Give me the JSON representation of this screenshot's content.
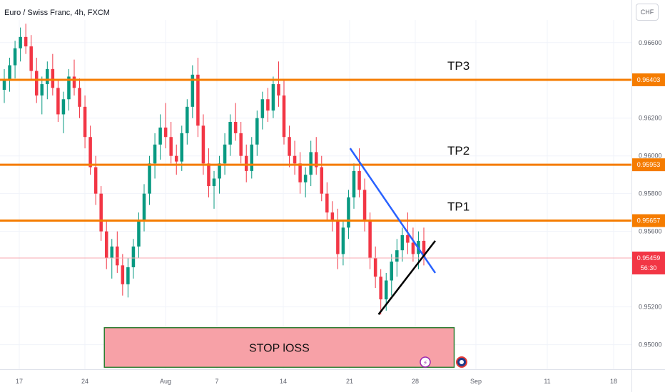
{
  "chart_data": {
    "type": "candlestick",
    "title": "Euro / Swiss Franc, 4h, FXCM",
    "currency": "CHF",
    "y_axis_ticks": [
      "0.96600",
      "0.96200",
      "0.96000",
      "0.95800",
      "0.95600",
      "0.95200",
      "0.95000"
    ],
    "x_axis_ticks": [
      "17",
      "24",
      "Aug",
      "7",
      "14",
      "21",
      "28",
      "Sep",
      "11",
      "18"
    ],
    "ylim": [
      0.9487,
      0.9672
    ],
    "horizontal_levels": [
      {
        "label": "TP3",
        "value": 0.96403,
        "tag": "0.96403",
        "color": "#f57c00"
      },
      {
        "label": "TP2",
        "value": 0.95953,
        "tag": "0.95953",
        "color": "#f57c00"
      },
      {
        "label": "TP1",
        "value": 0.95657,
        "tag": "0.95657",
        "color": "#f57c00"
      }
    ],
    "current_price": {
      "value": 0.95459,
      "tag": "0.95459",
      "countdown": "56:30",
      "color": "#f23645"
    },
    "trendlines": [
      {
        "name": "descending",
        "color": "#2962ff",
        "points": [
          [
            "2023-08-21",
            0.9604
          ],
          [
            "2023-08-30",
            0.9538
          ]
        ]
      },
      {
        "name": "ascending",
        "color": "#000000",
        "points": [
          [
            "2023-08-24",
            0.9516
          ],
          [
            "2023-08-30",
            0.9555
          ]
        ]
      }
    ],
    "stop_zone": {
      "label": "STOP lOSS",
      "from": 0.9488,
      "to": 0.9509,
      "start": "2023-07-26",
      "end": "2023-09-01",
      "fill": "#f7a1a7",
      "border": "#2e7d32"
    },
    "ohlc_approx": [
      [
        0.9635,
        0.9646,
        0.9628,
        0.964
      ],
      [
        0.964,
        0.9652,
        0.9634,
        0.9648
      ],
      [
        0.9648,
        0.9661,
        0.9641,
        0.9657
      ],
      [
        0.9657,
        0.9668,
        0.965,
        0.9663
      ],
      [
        0.9663,
        0.967,
        0.9654,
        0.9658
      ],
      [
        0.9658,
        0.9664,
        0.964,
        0.9645
      ],
      [
        0.9645,
        0.9652,
        0.9628,
        0.9632
      ],
      [
        0.9632,
        0.9642,
        0.9622,
        0.9638
      ],
      [
        0.9638,
        0.965,
        0.963,
        0.9646
      ],
      [
        0.9646,
        0.9654,
        0.9632,
        0.9636
      ],
      [
        0.9636,
        0.964,
        0.9618,
        0.9622
      ],
      [
        0.9622,
        0.9634,
        0.9612,
        0.963
      ],
      [
        0.963,
        0.9646,
        0.9624,
        0.9642
      ],
      [
        0.9642,
        0.9651,
        0.9632,
        0.9636
      ],
      [
        0.9636,
        0.9641,
        0.962,
        0.9626
      ],
      [
        0.9626,
        0.9632,
        0.9604,
        0.961
      ],
      [
        0.961,
        0.9616,
        0.959,
        0.9594
      ],
      [
        0.9594,
        0.96,
        0.9574,
        0.958
      ],
      [
        0.958,
        0.9584,
        0.9555,
        0.956
      ],
      [
        0.956,
        0.9566,
        0.954,
        0.9546
      ],
      [
        0.9546,
        0.9556,
        0.9535,
        0.9552
      ],
      [
        0.9552,
        0.956,
        0.9538,
        0.9542
      ],
      [
        0.9542,
        0.9548,
        0.9526,
        0.9532
      ],
      [
        0.9532,
        0.9546,
        0.9525,
        0.9541
      ],
      [
        0.9541,
        0.9556,
        0.9535,
        0.9552
      ],
      [
        0.9552,
        0.957,
        0.9546,
        0.9566
      ],
      [
        0.9566,
        0.9585,
        0.956,
        0.958
      ],
      [
        0.958,
        0.96,
        0.9574,
        0.9596
      ],
      [
        0.9596,
        0.9612,
        0.9588,
        0.9606
      ],
      [
        0.9606,
        0.9622,
        0.9598,
        0.9615
      ],
      [
        0.9615,
        0.9628,
        0.9604,
        0.961
      ],
      [
        0.961,
        0.9618,
        0.9596,
        0.96
      ],
      [
        0.96,
        0.9606,
        0.959,
        0.9597
      ],
      [
        0.9597,
        0.9616,
        0.9592,
        0.9612
      ],
      [
        0.9612,
        0.963,
        0.9606,
        0.9626
      ],
      [
        0.9626,
        0.9648,
        0.962,
        0.9643
      ],
      [
        0.9643,
        0.9652,
        0.961,
        0.9616
      ],
      [
        0.9616,
        0.9622,
        0.959,
        0.9596
      ],
      [
        0.9596,
        0.9604,
        0.9578,
        0.9584
      ],
      [
        0.9584,
        0.9592,
        0.9572,
        0.9588
      ],
      [
        0.9588,
        0.96,
        0.958,
        0.9596
      ],
      [
        0.9596,
        0.9612,
        0.959,
        0.9606
      ],
      [
        0.9606,
        0.9622,
        0.96,
        0.9618
      ],
      [
        0.9618,
        0.9628,
        0.9608,
        0.9612
      ],
      [
        0.9612,
        0.9618,
        0.9596,
        0.96
      ],
      [
        0.96,
        0.9606,
        0.9586,
        0.9592
      ],
      [
        0.9592,
        0.961,
        0.9588,
        0.9606
      ],
      [
        0.9606,
        0.9624,
        0.96,
        0.962
      ],
      [
        0.962,
        0.9634,
        0.9614,
        0.963
      ],
      [
        0.963,
        0.9636,
        0.9618,
        0.9624
      ],
      [
        0.9624,
        0.9642,
        0.962,
        0.9638
      ],
      [
        0.9638,
        0.965,
        0.9626,
        0.9632
      ],
      [
        0.9632,
        0.964,
        0.9606,
        0.961
      ],
      [
        0.961,
        0.9616,
        0.9594,
        0.96
      ],
      [
        0.96,
        0.9608,
        0.959,
        0.9596
      ],
      [
        0.9596,
        0.9602,
        0.958,
        0.9586
      ],
      [
        0.9586,
        0.9594,
        0.9578,
        0.959
      ],
      [
        0.959,
        0.9608,
        0.9584,
        0.9602
      ],
      [
        0.9602,
        0.961,
        0.959,
        0.9594
      ],
      [
        0.9594,
        0.96,
        0.9576,
        0.958
      ],
      [
        0.958,
        0.9586,
        0.9566,
        0.957
      ],
      [
        0.957,
        0.9576,
        0.956,
        0.9566
      ],
      [
        0.9566,
        0.9572,
        0.954,
        0.9548
      ],
      [
        0.9548,
        0.9566,
        0.9542,
        0.9562
      ],
      [
        0.9562,
        0.9582,
        0.9556,
        0.9578
      ],
      [
        0.9578,
        0.9596,
        0.9572,
        0.9592
      ],
      [
        0.9592,
        0.9604,
        0.9578,
        0.9582
      ],
      [
        0.9582,
        0.9588,
        0.956,
        0.9566
      ],
      [
        0.9566,
        0.957,
        0.954,
        0.9546
      ],
      [
        0.9546,
        0.9552,
        0.953,
        0.9536
      ],
      [
        0.9536,
        0.954,
        0.9516,
        0.9524
      ],
      [
        0.9524,
        0.9538,
        0.9518,
        0.9534
      ],
      [
        0.9534,
        0.9548,
        0.9526,
        0.9544
      ],
      [
        0.9544,
        0.9556,
        0.9536,
        0.955
      ],
      [
        0.955,
        0.9562,
        0.9544,
        0.9558
      ],
      [
        0.9558,
        0.957,
        0.9548,
        0.9554
      ],
      [
        0.9554,
        0.9562,
        0.9544,
        0.9548
      ],
      [
        0.9548,
        0.956,
        0.954,
        0.9555
      ],
      [
        0.9555,
        0.9562,
        0.9542,
        0.9546
      ]
    ]
  }
}
